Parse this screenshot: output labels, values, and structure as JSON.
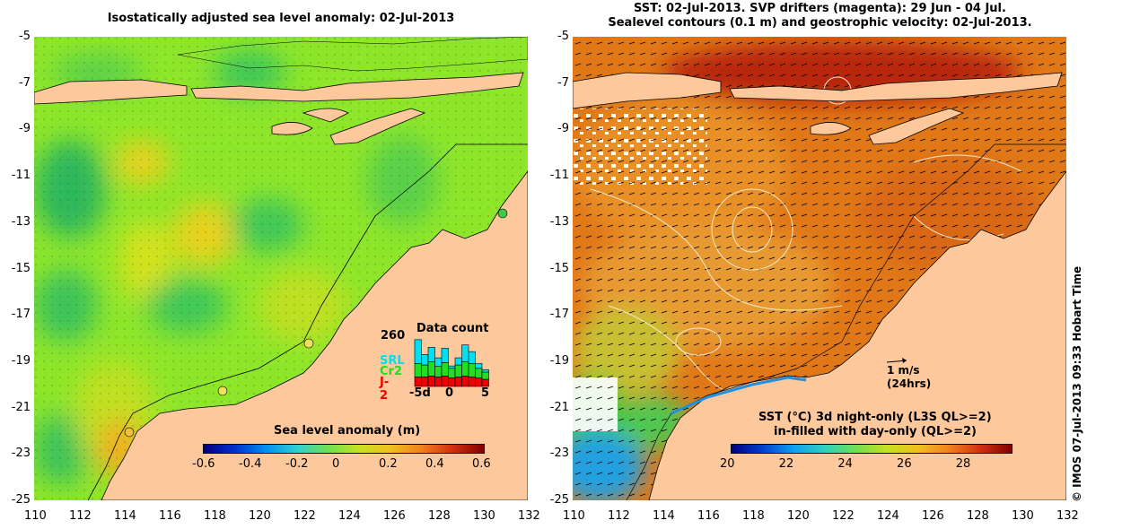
{
  "left_panel": {
    "title": "Isostatically adjusted sea level anomaly: 02-Jul-2013",
    "lat_ticks": [
      "-5",
      "-7",
      "-9",
      "-11",
      "-13",
      "-15",
      "-17",
      "-19",
      "-21",
      "-23",
      "-25"
    ],
    "lon_ticks": [
      "110",
      "112",
      "114",
      "116",
      "118",
      "120",
      "122",
      "124",
      "126",
      "128",
      "130",
      "132"
    ],
    "colorbar": {
      "label": "Sea level anomaly (m)",
      "ticks": [
        "-0.6",
        "-0.4",
        "-0.2",
        "0",
        "0.2",
        "0.4",
        "0.6"
      ],
      "range": [
        -0.6,
        0.6
      ]
    },
    "data_count": {
      "title": "Data count",
      "max_label": "260",
      "legend": [
        {
          "name": "SRL",
          "color": "#00e0f0"
        },
        {
          "name": "Cr2",
          "color": "#22dd22"
        },
        {
          "name": "J-2",
          "color": "#ee0000"
        }
      ],
      "x_ticks": [
        "-5d",
        "0",
        "5"
      ],
      "bars": [
        {
          "day": -5,
          "srl": 0.5,
          "cr2": 0.28,
          "j2": 0.2
        },
        {
          "day": -4,
          "srl": 0.22,
          "cr2": 0.25,
          "j2": 0.2
        },
        {
          "day": -3,
          "srl": 0.3,
          "cr2": 0.3,
          "j2": 0.22
        },
        {
          "day": -2,
          "srl": 0.18,
          "cr2": 0.22,
          "j2": 0.2
        },
        {
          "day": -1,
          "srl": 0.3,
          "cr2": 0.28,
          "j2": 0.22
        },
        {
          "day": 0,
          "srl": 0.05,
          "cr2": 0.2,
          "j2": 0.18
        },
        {
          "day": 1,
          "srl": 0.15,
          "cr2": 0.25,
          "j2": 0.2
        },
        {
          "day": 2,
          "srl": 0.35,
          "cr2": 0.3,
          "j2": 0.22
        },
        {
          "day": 3,
          "srl": 0.25,
          "cr2": 0.28,
          "j2": 0.2
        },
        {
          "day": 4,
          "srl": 0.1,
          "cr2": 0.2,
          "j2": 0.18
        },
        {
          "day": 5,
          "srl": 0.05,
          "cr2": 0.15,
          "j2": 0.15
        }
      ]
    },
    "colors": {
      "land": "#fcc89c",
      "ocean": "#8ee62a"
    }
  },
  "right_panel": {
    "title_line1": "SST: 02-Jul-2013. SVP drifters (magenta): 29 Jun - 04 Jul.",
    "title_line2": "Sealevel contours (0.1 m) and geostrophic velocity: 02-Jul-2013.",
    "lat_ticks": [
      "-5",
      "-7",
      "-9",
      "-11",
      "-13",
      "-15",
      "-17",
      "-19",
      "-21",
      "-23",
      "-25"
    ],
    "lon_ticks": [
      "110",
      "112",
      "114",
      "116",
      "118",
      "120",
      "122",
      "124",
      "126",
      "128",
      "130",
      "132"
    ],
    "velocity_legend": {
      "line1": "1 m/s",
      "line2": "(24hrs)"
    },
    "colorbar": {
      "label_line1": "SST (°C)  3d night-only (L3S QL>=2)",
      "label_line2": "in-filled with day-only (QL>=2)",
      "ticks": [
        "20",
        "22",
        "24",
        "26",
        "28"
      ],
      "range": [
        20,
        29.5
      ]
    },
    "colors": {
      "land": "#fcc89c",
      "ocean": "#e07818"
    }
  },
  "credit": "© IMOS 07-Jul-2013 09:33 Hobart Time"
}
